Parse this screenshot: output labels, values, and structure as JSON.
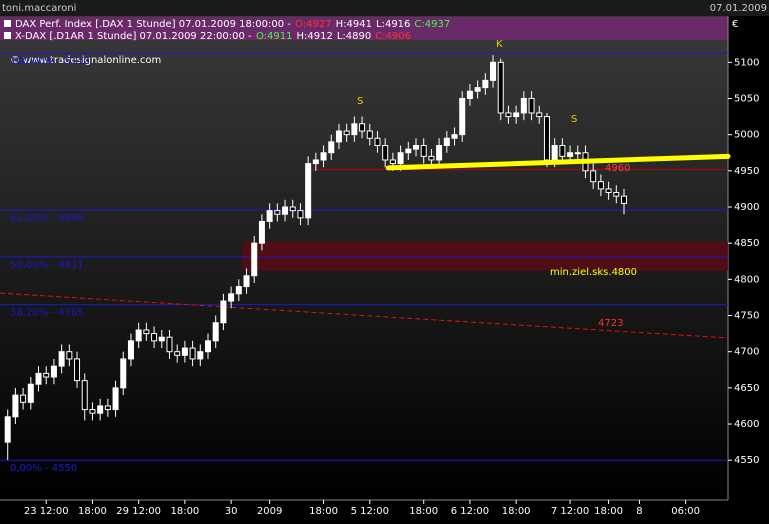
{
  "window": {
    "title": "toni.maccaroni",
    "date": "07.01.2009"
  },
  "chart_data": {
    "type": "candlestick",
    "currency": "€",
    "watermark": "© www.tradesignalonline.com",
    "legend": [
      {
        "name": "DAX Perf. Index [.DAX  1 Stunde] 07.01.2009 18:00:00 -",
        "open": "O:4927",
        "high": "H:4941",
        "low": "L:4916",
        "close": "C:4937"
      },
      {
        "name": "X-DAX [.D1AR  1 Stunde] 07.01.2009 22:00:00 -",
        "open": "O:4911",
        "high": "H:4912",
        "low": "L:4890",
        "close": "C:4906"
      }
    ],
    "open": [
      4575,
      4610,
      4640,
      4630,
      4655,
      4670,
      4665,
      4680,
      4700,
      4690,
      4660,
      4620,
      4615,
      4625,
      4620,
      4650,
      4690,
      4715,
      4730,
      4725,
      4715,
      4720,
      4700,
      4695,
      4705,
      4690,
      4700,
      4715,
      4740,
      4770,
      4780,
      4790,
      4805,
      4850,
      4880,
      4895,
      4890,
      4900,
      4895,
      4885,
      4960,
      4965,
      4975,
      4990,
      5005,
      5000,
      5015,
      5005,
      4995,
      4985,
      4965,
      4960,
      4975,
      4980,
      4985,
      4970,
      4965,
      4985,
      4995,
      5000,
      5050,
      5060,
      5065,
      5075,
      5100,
      5030,
      5025,
      5030,
      5050,
      5030,
      5025,
      4965,
      4985,
      4970,
      4975,
      4975,
      4950,
      4935,
      4925,
      4920,
      4915
    ],
    "high": [
      4620,
      4650,
      4650,
      4665,
      4680,
      4680,
      4690,
      4710,
      4710,
      4700,
      4670,
      4630,
      4635,
      4635,
      4660,
      4700,
      4725,
      4740,
      4740,
      4735,
      4730,
      4730,
      4710,
      4715,
      4715,
      4710,
      4725,
      4750,
      4780,
      4790,
      4800,
      4815,
      4860,
      4890,
      4905,
      4905,
      4910,
      4910,
      4905,
      4970,
      4975,
      4985,
      5000,
      5015,
      5015,
      5025,
      5025,
      5015,
      5005,
      4995,
      4975,
      4985,
      4990,
      4995,
      4995,
      4980,
      4995,
      5005,
      5010,
      5060,
      5070,
      5075,
      5085,
      5110,
      5105,
      5040,
      5040,
      5060,
      5060,
      5040,
      5030,
      4995,
      4995,
      4985,
      4985,
      4985,
      4960,
      4945,
      4935,
      4930,
      4925
    ],
    "low": [
      4550,
      4600,
      4620,
      4620,
      4645,
      4655,
      4655,
      4670,
      4680,
      4650,
      4605,
      4605,
      4605,
      4610,
      4610,
      4640,
      4680,
      4705,
      4715,
      4705,
      4705,
      4690,
      4685,
      4685,
      4680,
      4680,
      4690,
      4705,
      4730,
      4760,
      4770,
      4780,
      4795,
      4840,
      4870,
      4880,
      4880,
      4885,
      4875,
      4875,
      4950,
      4955,
      4965,
      4980,
      4990,
      4990,
      4995,
      4985,
      4975,
      4955,
      4950,
      4950,
      4965,
      4970,
      4960,
      4955,
      4955,
      4975,
      4985,
      4990,
      5040,
      5050,
      5055,
      5065,
      5020,
      5015,
      5015,
      5020,
      5020,
      5015,
      4955,
      4955,
      4960,
      4960,
      4965,
      4940,
      4925,
      4915,
      4910,
      4905,
      4890
    ],
    "close": [
      4610,
      4640,
      4630,
      4655,
      4670,
      4665,
      4680,
      4700,
      4690,
      4660,
      4620,
      4615,
      4625,
      4620,
      4650,
      4690,
      4715,
      4730,
      4725,
      4715,
      4720,
      4700,
      4695,
      4705,
      4690,
      4700,
      4715,
      4740,
      4770,
      4780,
      4790,
      4805,
      4850,
      4880,
      4895,
      4890,
      4900,
      4895,
      4885,
      4960,
      4965,
      4975,
      4990,
      5005,
      5000,
      5015,
      5005,
      4995,
      4985,
      4965,
      4960,
      4975,
      4980,
      4985,
      4970,
      4965,
      4985,
      4995,
      5000,
      5050,
      5060,
      5065,
      5075,
      5100,
      5030,
      5025,
      5030,
      5050,
      5030,
      5025,
      4965,
      4985,
      4970,
      4975,
      4975,
      4950,
      4935,
      4925,
      4920,
      4915,
      4905
    ],
    "xlim": [
      -1,
      93.5
    ],
    "xticks": [
      {
        "value": 5,
        "label": "23 12:00"
      },
      {
        "value": 11,
        "label": "18:00"
      },
      {
        "value": 17,
        "label": "29 12:00"
      },
      {
        "value": 23,
        "label": "18:00"
      },
      {
        "value": 29,
        "label": "30"
      },
      {
        "value": 34,
        "label": "2009"
      },
      {
        "value": 41,
        "label": "18:00"
      },
      {
        "value": 47,
        "label": "5 12:00"
      },
      {
        "value": 54,
        "label": "18:00"
      },
      {
        "value": 60,
        "label": "6 12:00"
      },
      {
        "value": 66,
        "label": "18:00"
      },
      {
        "value": 73,
        "label": "7 12:00"
      },
      {
        "value": 78,
        "label": "18:00"
      },
      {
        "value": 82,
        "label": "8"
      },
      {
        "value": 88,
        "label": "06:00"
      }
    ],
    "ylim": [
      4495,
      5164
    ],
    "yticks": [
      4550,
      4600,
      4650,
      4700,
      4750,
      4800,
      4850,
      4900,
      4950,
      5000,
      5050,
      5100
    ],
    "fib_levels": [
      {
        "value": 5113,
        "label": "100,00% - 5113"
      },
      {
        "value": 4896,
        "label": "61,80% - 4896"
      },
      {
        "value": 4831,
        "label": "50,00% - 4831"
      },
      {
        "value": 4765,
        "label": "38,20% - 4765"
      },
      {
        "value": 4550,
        "label": "0,00% - 4550"
      }
    ],
    "resistance_line": {
      "value": 4952,
      "x_start": 38.6
    },
    "target_zone": {
      "low": 4812,
      "high": 4852,
      "x_start": 30.5
    },
    "trendline": {
      "x": [
        -1,
        93.5
      ],
      "y": [
        4781,
        4719
      ]
    },
    "neckline": {
      "x": [
        49.4,
        93.5
      ],
      "y": [
        4954,
        4970
      ]
    },
    "annotations": [
      "S",
      "K",
      "S",
      "4960",
      "min.ziel.sks.4800",
      "4723"
    ]
  }
}
